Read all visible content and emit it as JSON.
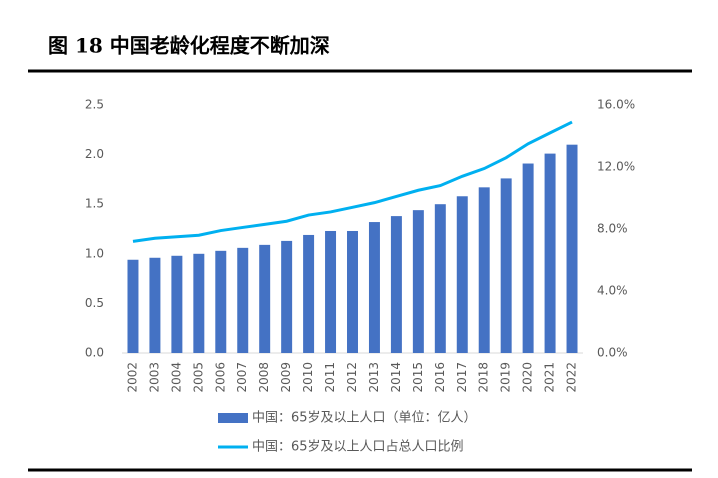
{
  "chart_data": {
    "type": "bar_line",
    "title": "图 18 中国老龄化程度不断加深",
    "categories": [
      "2002",
      "2003",
      "2004",
      "2005",
      "2006",
      "2007",
      "2008",
      "2009",
      "2010",
      "2011",
      "2012",
      "2013",
      "2014",
      "2015",
      "2016",
      "2017",
      "2018",
      "2019",
      "2020",
      "2021",
      "2022"
    ],
    "series": [
      {
        "name": "中国：65岁及以上人口（单位：亿人）",
        "type": "bar",
        "color": "#4472c4",
        "axis": "y",
        "values": [
          0.94,
          0.96,
          0.98,
          1.0,
          1.03,
          1.06,
          1.09,
          1.13,
          1.19,
          1.23,
          1.23,
          1.32,
          1.38,
          1.44,
          1.5,
          1.58,
          1.67,
          1.76,
          1.91,
          2.01,
          2.1
        ]
      },
      {
        "name": "中国：65岁及以上人口占总人口比例",
        "type": "line",
        "color": "#00b0f0",
        "axis": "y2",
        "values": [
          7.2,
          7.4,
          7.5,
          7.6,
          7.9,
          8.1,
          8.3,
          8.5,
          8.9,
          9.1,
          9.4,
          9.7,
          10.1,
          10.5,
          10.8,
          11.4,
          11.9,
          12.6,
          13.5,
          14.2,
          14.9
        ]
      }
    ],
    "ylim": [
      0,
      2.5
    ],
    "yticks": [
      {
        "value": 0,
        "label": "0.0"
      },
      0.5,
      {
        "value": 1,
        "label": "1.0"
      },
      1.5,
      {
        "value": 2,
        "label": "2.0"
      },
      2.5
    ],
    "y2lim": [
      0,
      16
    ],
    "y2ticks": [
      {
        "value": 0,
        "label": "0.0%"
      },
      {
        "value": 4,
        "label": "4.0%"
      },
      {
        "value": 8,
        "label": "8.0%"
      },
      {
        "value": 12,
        "label": "12.0%"
      },
      {
        "value": 16,
        "label": "16.0%"
      }
    ],
    "legend": "bottom"
  }
}
